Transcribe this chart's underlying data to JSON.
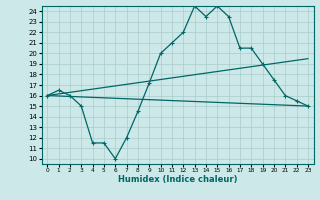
{
  "xlabel": "Humidex (Indice chaleur)",
  "xlim": [
    -0.5,
    23.5
  ],
  "ylim": [
    9.5,
    24.5
  ],
  "yticks": [
    10,
    11,
    12,
    13,
    14,
    15,
    16,
    17,
    18,
    19,
    20,
    21,
    22,
    23,
    24
  ],
  "xticks": [
    0,
    1,
    2,
    3,
    4,
    5,
    6,
    7,
    8,
    9,
    10,
    11,
    12,
    13,
    14,
    15,
    16,
    17,
    18,
    19,
    20,
    21,
    22,
    23
  ],
  "bg_color": "#cce8e8",
  "grid_color": "#aacccc",
  "line_color": "#006666",
  "zigzag_x": [
    0,
    1,
    2,
    3,
    4,
    5,
    6,
    7,
    8,
    9,
    10,
    11,
    12,
    13,
    14,
    15,
    16,
    17,
    18,
    19,
    20,
    21,
    22,
    23
  ],
  "zigzag_y": [
    16.0,
    16.5,
    16.0,
    15.0,
    11.5,
    11.5,
    10.0,
    12.0,
    14.5,
    17.2,
    20.0,
    21.0,
    22.0,
    24.5,
    23.5,
    24.5,
    23.5,
    20.5,
    20.5,
    19.0,
    17.5,
    16.0,
    15.5,
    15.0
  ],
  "upper_line_x": [
    0,
    23
  ],
  "upper_line_y": [
    16.0,
    19.5
  ],
  "lower_line_x": [
    0,
    23
  ],
  "lower_line_y": [
    16.0,
    15.0
  ]
}
